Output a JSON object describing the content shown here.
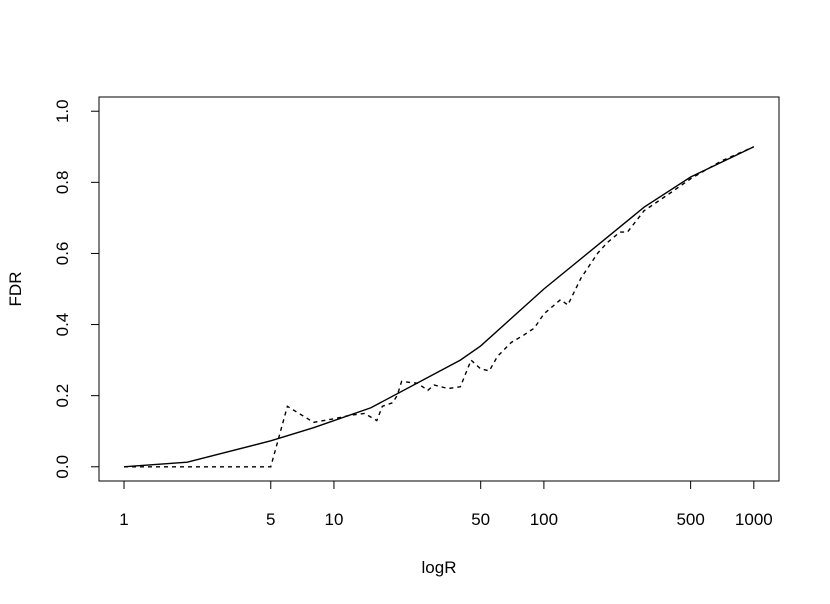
{
  "chart_data": {
    "type": "line",
    "xlabel": "logR",
    "ylabel": "FDR",
    "xscale": "log",
    "xlim": [
      0.76,
      1318
    ],
    "ylim": [
      -0.04,
      1.04
    ],
    "xticks": [
      1,
      5,
      10,
      50,
      100,
      500,
      1000
    ],
    "yticks": [
      {
        "value": 0,
        "label": "0.0"
      },
      {
        "value": 0.2,
        "label": "0.2"
      },
      {
        "value": 0.4,
        "label": "0.4"
      },
      {
        "value": 0.6,
        "label": "0.6"
      },
      {
        "value": 0.8,
        "label": "0.8"
      },
      {
        "value": 1,
        "label": "1.0"
      }
    ],
    "series": [
      {
        "color": "#000000",
        "dash": "solid",
        "x": [
          1,
          2,
          5,
          8,
          15,
          40,
          50,
          100,
          200,
          300,
          500,
          1000
        ],
        "values": [
          0,
          0.013,
          0.073,
          0.11,
          0.166,
          0.3,
          0.34,
          0.5,
          0.645,
          0.73,
          0.815,
          0.9
        ]
      },
      {
        "color": "#000000",
        "dash": "dashed",
        "x": [
          1,
          5,
          6,
          8,
          10,
          12,
          14,
          16,
          17,
          19,
          20,
          21,
          25,
          28,
          30,
          35,
          40,
          45,
          50,
          55,
          60,
          70,
          80,
          90,
          100,
          120,
          130,
          150,
          180,
          200,
          230,
          250,
          300,
          400,
          500,
          700,
          1000
        ],
        "values": [
          0,
          0,
          0.17,
          0.125,
          0.135,
          0.145,
          0.15,
          0.13,
          0.17,
          0.18,
          0.2,
          0.24,
          0.235,
          0.215,
          0.23,
          0.22,
          0.225,
          0.3,
          0.275,
          0.27,
          0.31,
          0.35,
          0.37,
          0.39,
          0.43,
          0.47,
          0.455,
          0.53,
          0.6,
          0.63,
          0.66,
          0.66,
          0.72,
          0.77,
          0.81,
          0.86,
          0.9
        ]
      }
    ]
  }
}
